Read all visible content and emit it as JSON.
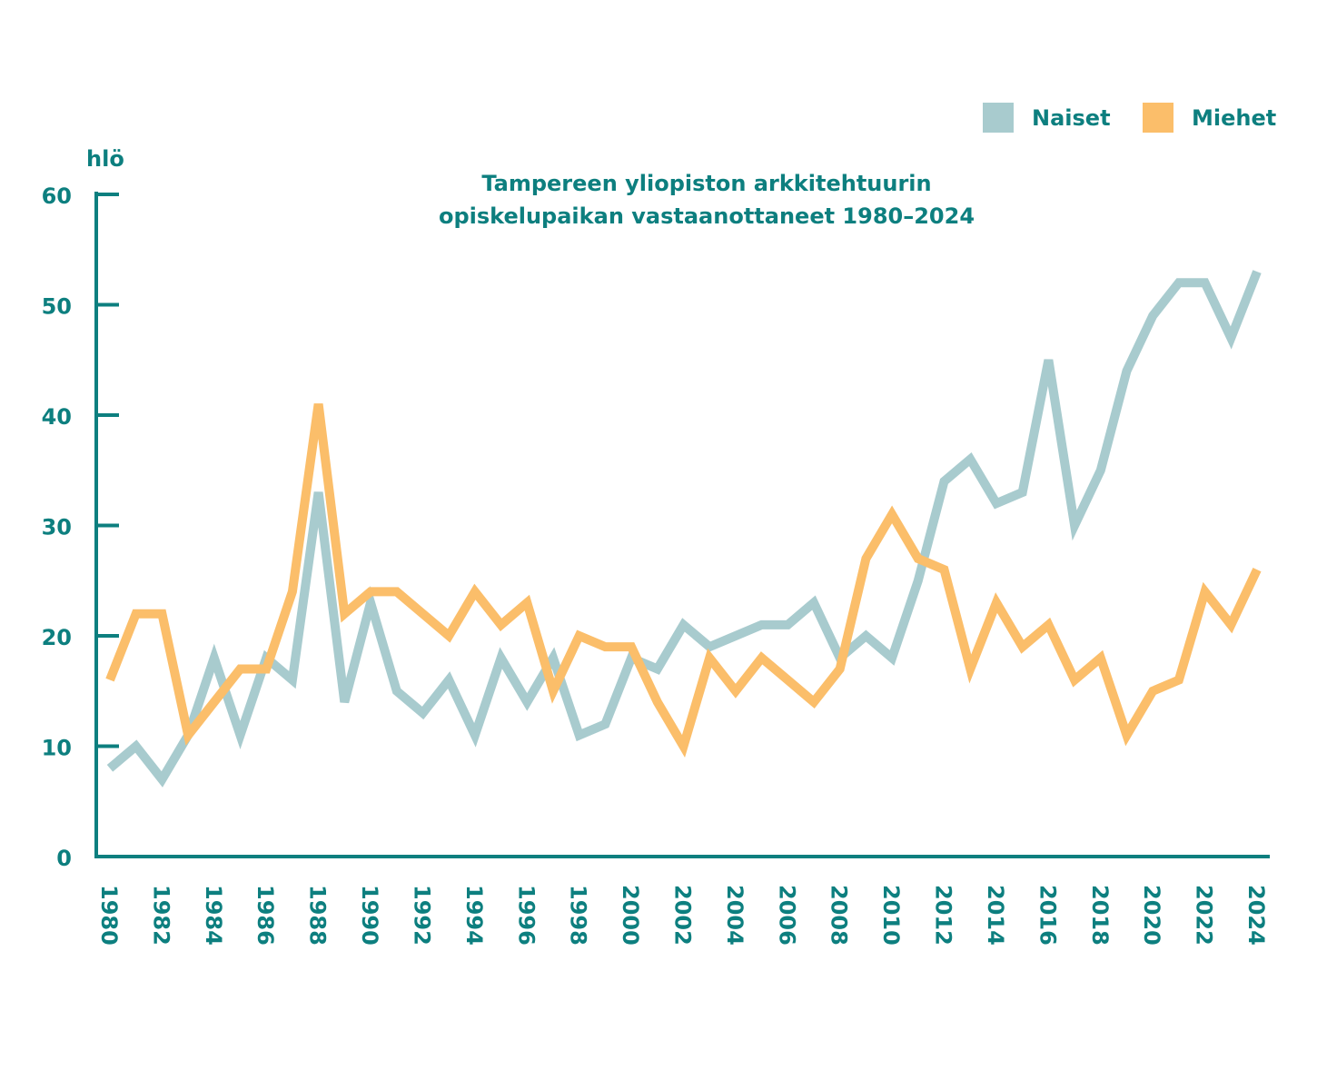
{
  "chart_data": {
    "type": "line",
    "title_lines": [
      "Tampereen yliopiston arkkitehtuurin",
      "opiskelupaikan vastaanottaneet 1980–2024"
    ],
    "ylabel": "hlö",
    "xlabel": "",
    "ylim": [
      0,
      60
    ],
    "yticks": [
      "0",
      "10",
      "20",
      "30",
      "40",
      "50",
      "60"
    ],
    "xtick_labels": [
      "1980",
      "1982",
      "1984",
      "1986",
      "1988",
      "1990",
      "1992",
      "1994",
      "1996",
      "1998",
      "2000",
      "2002",
      "2004",
      "2006",
      "2008",
      "2010",
      "2012",
      "2014",
      "2016",
      "2018",
      "2020",
      "2022",
      "2024"
    ],
    "x": [
      1980,
      1981,
      1982,
      1983,
      1984,
      1985,
      1986,
      1987,
      1988,
      1989,
      1990,
      1991,
      1992,
      1993,
      1994,
      1995,
      1996,
      1997,
      1998,
      1999,
      2000,
      2001,
      2002,
      2003,
      2004,
      2005,
      2006,
      2007,
      2008,
      2009,
      2010,
      2011,
      2012,
      2013,
      2014,
      2015,
      2016,
      2017,
      2018,
      2019,
      2020,
      2021,
      2022,
      2023,
      2024
    ],
    "legend_position": "top-right",
    "grid": false,
    "series": [
      {
        "name": "Naiset",
        "color": "#a8cbce",
        "values": [
          8,
          10,
          7,
          11,
          18,
          11,
          18,
          16,
          33,
          14,
          23,
          15,
          13,
          16,
          11,
          18,
          14,
          18,
          11,
          12,
          18,
          17,
          21,
          19,
          20,
          21,
          21,
          23,
          18,
          20,
          18,
          25,
          34,
          36,
          32,
          33,
          45,
          30,
          35,
          44,
          49,
          52,
          52,
          47,
          53
        ]
      },
      {
        "name": "Miehet",
        "color": "#fbbe6a",
        "values": [
          16,
          22,
          22,
          11,
          14,
          17,
          17,
          24,
          41,
          22,
          24,
          24,
          22,
          20,
          24,
          21,
          23,
          15,
          20,
          19,
          19,
          14,
          10,
          18,
          15,
          18,
          16,
          14,
          17,
          27,
          31,
          27,
          26,
          17,
          23,
          19,
          21,
          16,
          18,
          11,
          15,
          16,
          24,
          21,
          26
        ]
      }
    ]
  }
}
